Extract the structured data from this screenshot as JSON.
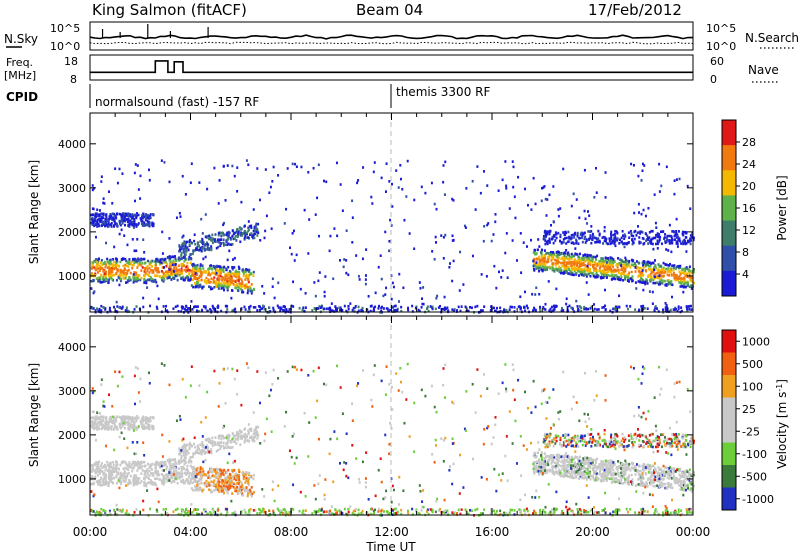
{
  "header": {
    "station": "King Salmon (fitACF)",
    "beam": "Beam 04",
    "date": "17/Feb/2012"
  },
  "noise_panel": {
    "left_label": "N.Sky",
    "right_label": "N.Search",
    "left_ticks": [
      "10^5",
      "10^0"
    ],
    "right_ticks": [
      "10^5",
      "10^0"
    ]
  },
  "freq_panel": {
    "left_label_line1": "Freq.",
    "left_label_line2": "[MHz]",
    "right_label": "Nave",
    "left_ticks": [
      "18",
      "8"
    ],
    "right_ticks": [
      "60",
      "0"
    ],
    "freq_mhz_steps": [
      {
        "from_h": 0.0,
        "to_h": 2.6,
        "value": 10.5
      },
      {
        "from_h": 2.6,
        "to_h": 3.1,
        "value": 16.5
      },
      {
        "from_h": 3.1,
        "to_h": 3.35,
        "value": 10.5
      },
      {
        "from_h": 3.35,
        "to_h": 3.7,
        "value": 16.0
      },
      {
        "from_h": 3.7,
        "to_h": 24.0,
        "value": 10.5
      }
    ]
  },
  "cpid": {
    "label": "CPID",
    "segments": [
      {
        "start_h": 0,
        "text": "normalsound (fast) -157 RF"
      },
      {
        "start_h": 12,
        "text": "themis 3300 RF"
      }
    ]
  },
  "chart_data": [
    {
      "type": "heatmap",
      "title": "",
      "ylabel": "Slant Range [km]",
      "xlabel": "Time UT",
      "x_ticks": [
        "00:00",
        "04:00",
        "08:00",
        "12:00",
        "16:00",
        "20:00",
        "00:00"
      ],
      "y_ticks": [
        "1000",
        "2000",
        "3000",
        "4000"
      ],
      "xlim_hours": [
        0,
        24
      ],
      "ylim_km": [
        180,
        4700
      ],
      "colorbar": {
        "label": "Power [dB]",
        "ticks": [
          "4",
          "8",
          "12",
          "16",
          "20",
          "24",
          "28"
        ],
        "colors": [
          "#1b1bd6",
          "#2f4fa8",
          "#3d7d6a",
          "#5fb24a",
          "#f5b800",
          "#f07a10",
          "#e01818"
        ]
      },
      "features": [
        {
          "name": "E/F echo band morning",
          "hours": [
            0,
            6.5
          ],
          "range_km": [
            850,
            1500
          ]
        },
        {
          "name": "upper band morning",
          "hours": [
            0,
            2.5
          ],
          "range_km": [
            2100,
            2450
          ]
        },
        {
          "name": "evening echo band",
          "hours": [
            17.5,
            24
          ],
          "range_km": [
            800,
            2100
          ]
        },
        {
          "name": "near-range scatter",
          "hours": [
            0,
            24
          ],
          "range_km": [
            200,
            400
          ]
        }
      ]
    },
    {
      "type": "heatmap",
      "title": "",
      "ylabel": "Slant Range [km]",
      "xlabel": "Time UT",
      "x_ticks": [
        "00:00",
        "04:00",
        "08:00",
        "12:00",
        "16:00",
        "20:00",
        "00:00"
      ],
      "y_ticks": [
        "1000",
        "2000",
        "3000",
        "4000"
      ],
      "xlim_hours": [
        0,
        24
      ],
      "ylim_km": [
        180,
        4700
      ],
      "colorbar": {
        "label_main": "Velocity [m s",
        "label_sup": "-1",
        "label_end": "]",
        "ticks": [
          "1000",
          "500",
          "100",
          "25",
          "-25",
          "-100",
          "-500",
          "-1000"
        ],
        "colors": [
          "#2030c0",
          "#3a7a3a",
          "#6ccf3a",
          "#c8c8c8",
          "#c8c8c8",
          "#f0a020",
          "#f06010",
          "#e01010"
        ]
      },
      "features": [
        {
          "name": "ground scatter morning",
          "hours": [
            0,
            5.5
          ],
          "range_km": [
            850,
            1500
          ]
        },
        {
          "name": "ground scatter evening",
          "hours": [
            18,
            24
          ],
          "range_km": [
            800,
            1900
          ]
        }
      ]
    }
  ]
}
